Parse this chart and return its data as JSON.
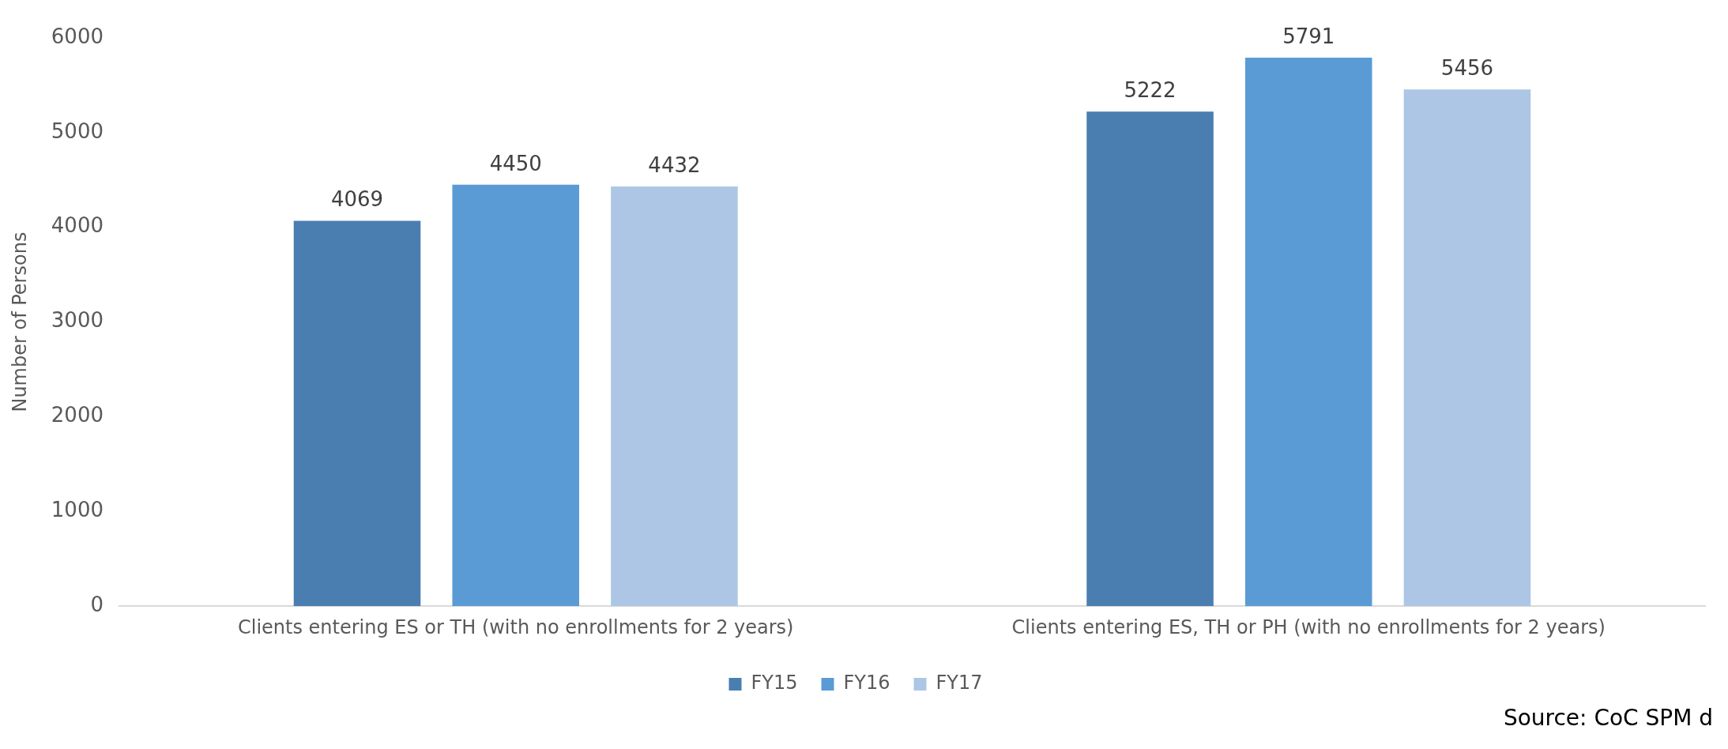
{
  "chart_data": {
    "type": "bar",
    "ylabel": "Number of Persons",
    "categories": [
      "Clients entering ES or TH (with no enrollments for 2 years)",
      "Clients entering ES, TH or PH (with no enrollments for 2 years)"
    ],
    "series": [
      {
        "name": "FY15",
        "color": "#4a7eb0",
        "values": [
          4069,
          5222
        ]
      },
      {
        "name": "FY16",
        "color": "#5b9bd5",
        "values": [
          4450,
          5791
        ]
      },
      {
        "name": "FY17",
        "color": "#adc6e5",
        "values": [
          4432,
          5456
        ]
      }
    ],
    "ylim": [
      0,
      6000
    ],
    "yticks": [
      0,
      1000,
      2000,
      3000,
      4000,
      5000,
      6000
    ],
    "grid": false,
    "legend": "bottom",
    "data_labels": true,
    "annotations": [
      "Source: CoC SPM d"
    ]
  }
}
